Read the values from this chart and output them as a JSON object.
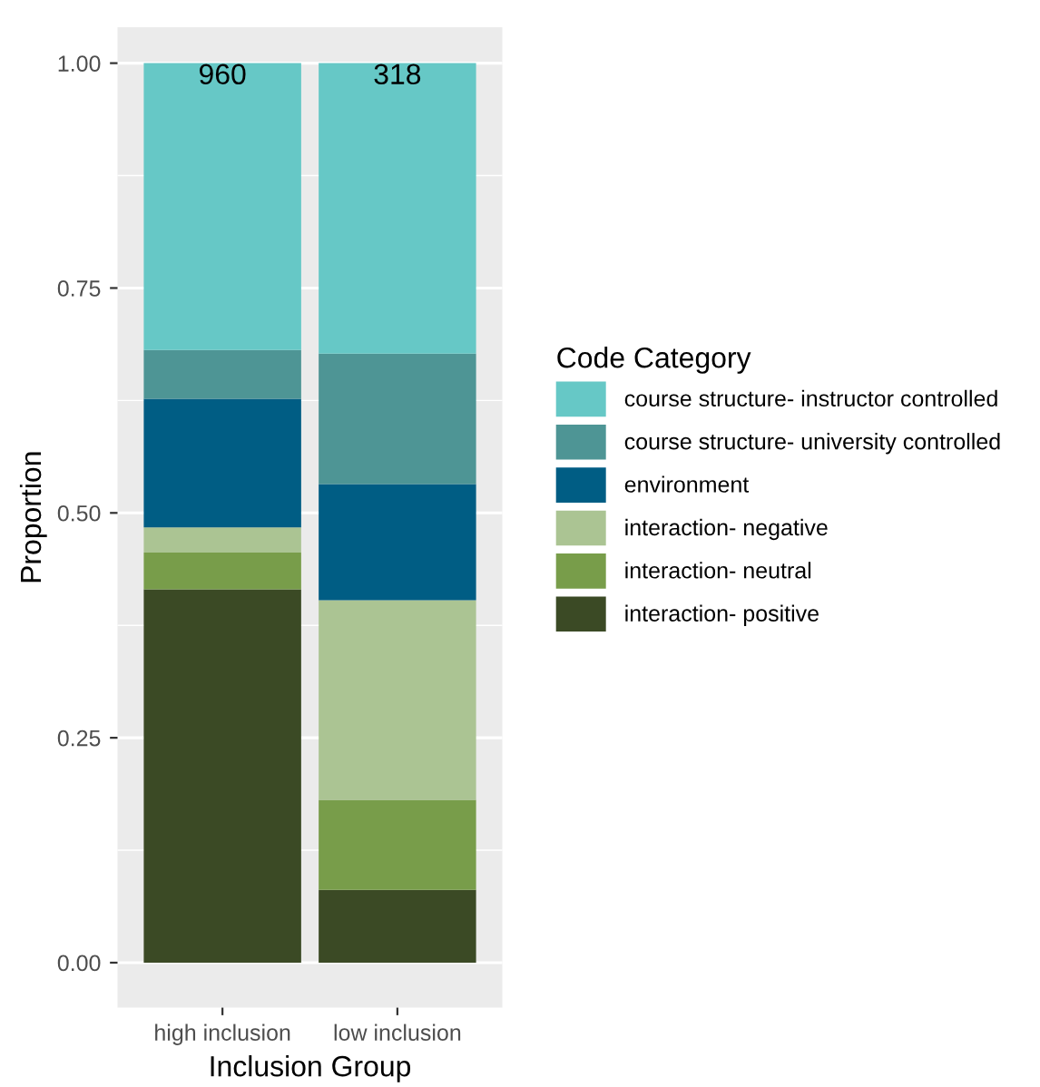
{
  "chart_data": {
    "type": "bar",
    "stacked": true,
    "xlabel": "Inclusion Group",
    "ylabel": "Proportion",
    "legend_title": "Code Category",
    "legend": "right",
    "categories": [
      "high inclusion",
      "low inclusion"
    ],
    "series": [
      {
        "name": "interaction- positive",
        "color": "#3b4a25",
        "values": [
          0.415,
          0.081
        ]
      },
      {
        "name": "interaction- neutral",
        "color": "#789d4a",
        "values": [
          0.041,
          0.1
        ]
      },
      {
        "name": "interaction- negative",
        "color": "#abc493",
        "values": [
          0.028,
          0.222
        ]
      },
      {
        "name": "environment",
        "color": "#005d84",
        "values": [
          0.143,
          0.129
        ]
      },
      {
        "name": "course structure- university controlled",
        "color": "#4e9595",
        "values": [
          0.054,
          0.145
        ]
      },
      {
        "name": "course structure- instructor controlled",
        "color": "#66c8c6",
        "values": [
          0.319,
          0.323
        ]
      }
    ],
    "annotations": [
      {
        "text": "960",
        "x": "high inclusion",
        "y": 1
      },
      {
        "text": "318",
        "x": "low inclusion",
        "y": 1
      }
    ],
    "ylim": [
      -0.05,
      1.04
    ],
    "yticks": [
      {
        "value": 0,
        "label": "0.00"
      },
      {
        "value": 0.25,
        "label": "0.25"
      },
      {
        "value": 0.5,
        "label": "0.50"
      },
      {
        "value": 0.75,
        "label": "0.75"
      },
      {
        "value": 1,
        "label": "1.00"
      }
    ],
    "grid": "y"
  }
}
